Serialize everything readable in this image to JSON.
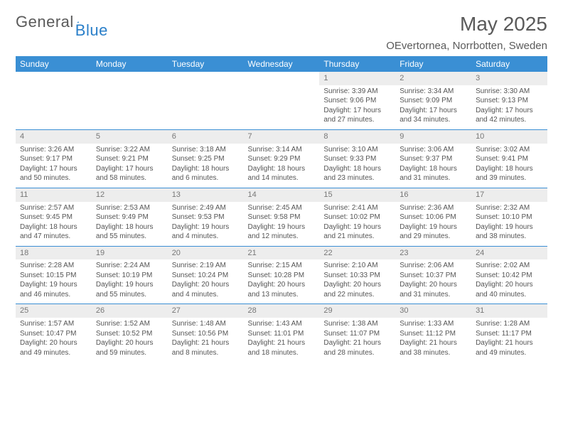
{
  "logo": {
    "text1": "General",
    "text2": "Blue"
  },
  "title": "May 2025",
  "location": "OEvertornea, Norrbotten, Sweden",
  "weekdays": [
    "Sunday",
    "Monday",
    "Tuesday",
    "Wednesday",
    "Thursday",
    "Friday",
    "Saturday"
  ],
  "colors": {
    "header_bg": "#3a8fd4",
    "header_fg": "#ffffff",
    "daynum_bg": "#ededed",
    "daynum_fg": "#777777",
    "row_border": "#3a8fd4",
    "body_fg": "#555555"
  },
  "grid": [
    [
      null,
      null,
      null,
      null,
      {
        "n": "1",
        "sr": "3:39 AM",
        "ss": "9:06 PM",
        "dl": "17 hours and 27 minutes."
      },
      {
        "n": "2",
        "sr": "3:34 AM",
        "ss": "9:09 PM",
        "dl": "17 hours and 34 minutes."
      },
      {
        "n": "3",
        "sr": "3:30 AM",
        "ss": "9:13 PM",
        "dl": "17 hours and 42 minutes."
      }
    ],
    [
      {
        "n": "4",
        "sr": "3:26 AM",
        "ss": "9:17 PM",
        "dl": "17 hours and 50 minutes."
      },
      {
        "n": "5",
        "sr": "3:22 AM",
        "ss": "9:21 PM",
        "dl": "17 hours and 58 minutes."
      },
      {
        "n": "6",
        "sr": "3:18 AM",
        "ss": "9:25 PM",
        "dl": "18 hours and 6 minutes."
      },
      {
        "n": "7",
        "sr": "3:14 AM",
        "ss": "9:29 PM",
        "dl": "18 hours and 14 minutes."
      },
      {
        "n": "8",
        "sr": "3:10 AM",
        "ss": "9:33 PM",
        "dl": "18 hours and 23 minutes."
      },
      {
        "n": "9",
        "sr": "3:06 AM",
        "ss": "9:37 PM",
        "dl": "18 hours and 31 minutes."
      },
      {
        "n": "10",
        "sr": "3:02 AM",
        "ss": "9:41 PM",
        "dl": "18 hours and 39 minutes."
      }
    ],
    [
      {
        "n": "11",
        "sr": "2:57 AM",
        "ss": "9:45 PM",
        "dl": "18 hours and 47 minutes."
      },
      {
        "n": "12",
        "sr": "2:53 AM",
        "ss": "9:49 PM",
        "dl": "18 hours and 55 minutes."
      },
      {
        "n": "13",
        "sr": "2:49 AM",
        "ss": "9:53 PM",
        "dl": "19 hours and 4 minutes."
      },
      {
        "n": "14",
        "sr": "2:45 AM",
        "ss": "9:58 PM",
        "dl": "19 hours and 12 minutes."
      },
      {
        "n": "15",
        "sr": "2:41 AM",
        "ss": "10:02 PM",
        "dl": "19 hours and 21 minutes."
      },
      {
        "n": "16",
        "sr": "2:36 AM",
        "ss": "10:06 PM",
        "dl": "19 hours and 29 minutes."
      },
      {
        "n": "17",
        "sr": "2:32 AM",
        "ss": "10:10 PM",
        "dl": "19 hours and 38 minutes."
      }
    ],
    [
      {
        "n": "18",
        "sr": "2:28 AM",
        "ss": "10:15 PM",
        "dl": "19 hours and 46 minutes."
      },
      {
        "n": "19",
        "sr": "2:24 AM",
        "ss": "10:19 PM",
        "dl": "19 hours and 55 minutes."
      },
      {
        "n": "20",
        "sr": "2:19 AM",
        "ss": "10:24 PM",
        "dl": "20 hours and 4 minutes."
      },
      {
        "n": "21",
        "sr": "2:15 AM",
        "ss": "10:28 PM",
        "dl": "20 hours and 13 minutes."
      },
      {
        "n": "22",
        "sr": "2:10 AM",
        "ss": "10:33 PM",
        "dl": "20 hours and 22 minutes."
      },
      {
        "n": "23",
        "sr": "2:06 AM",
        "ss": "10:37 PM",
        "dl": "20 hours and 31 minutes."
      },
      {
        "n": "24",
        "sr": "2:02 AM",
        "ss": "10:42 PM",
        "dl": "20 hours and 40 minutes."
      }
    ],
    [
      {
        "n": "25",
        "sr": "1:57 AM",
        "ss": "10:47 PM",
        "dl": "20 hours and 49 minutes."
      },
      {
        "n": "26",
        "sr": "1:52 AM",
        "ss": "10:52 PM",
        "dl": "20 hours and 59 minutes."
      },
      {
        "n": "27",
        "sr": "1:48 AM",
        "ss": "10:56 PM",
        "dl": "21 hours and 8 minutes."
      },
      {
        "n": "28",
        "sr": "1:43 AM",
        "ss": "11:01 PM",
        "dl": "21 hours and 18 minutes."
      },
      {
        "n": "29",
        "sr": "1:38 AM",
        "ss": "11:07 PM",
        "dl": "21 hours and 28 minutes."
      },
      {
        "n": "30",
        "sr": "1:33 AM",
        "ss": "11:12 PM",
        "dl": "21 hours and 38 minutes."
      },
      {
        "n": "31",
        "sr": "1:28 AM",
        "ss": "11:17 PM",
        "dl": "21 hours and 49 minutes."
      }
    ]
  ],
  "labels": {
    "sunrise": "Sunrise:",
    "sunset": "Sunset:",
    "daylight": "Daylight:"
  }
}
